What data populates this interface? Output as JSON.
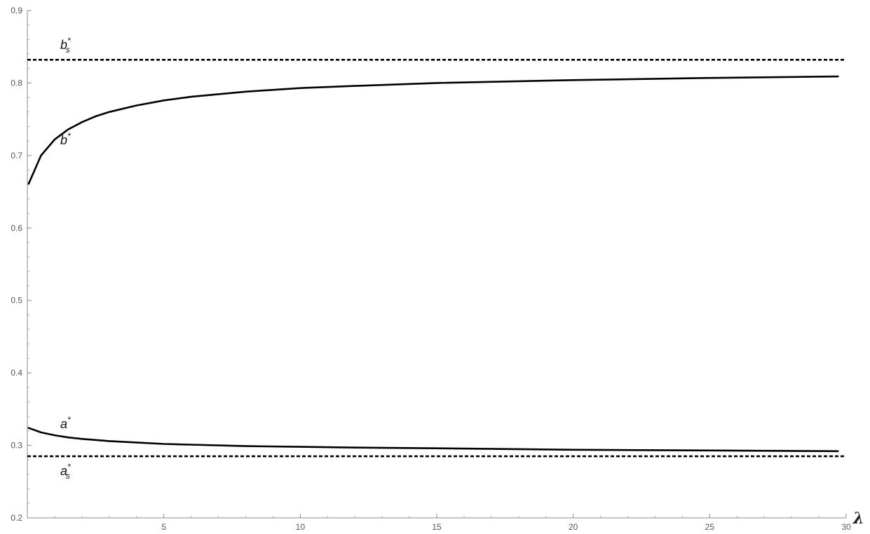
{
  "chart_data": {
    "type": "line",
    "xlabel": "λ",
    "ylabel": "",
    "xlim": [
      0,
      30
    ],
    "ylim": [
      0.2,
      0.9
    ],
    "x_ticks": [
      5,
      10,
      15,
      20,
      25,
      30
    ],
    "x_tick_labels": [
      "5",
      "10",
      "15",
      "20",
      "25",
      "30"
    ],
    "y_ticks": [
      0.2,
      0.3,
      0.4,
      0.5,
      0.6,
      0.7,
      0.8,
      0.9
    ],
    "y_tick_labels": [
      "0.2",
      "0.3",
      "0.4",
      "0.5",
      "0.6",
      "0.7",
      "0.8",
      "0.9"
    ],
    "grid": false,
    "line_color": "#000000",
    "series": [
      {
        "name": "b*",
        "style": "solid",
        "x": [
          0.05,
          0.5,
          1,
          1.5,
          2,
          2.5,
          3,
          4,
          5,
          6,
          8,
          10,
          12,
          15,
          20,
          25,
          29.7
        ],
        "values": [
          0.661,
          0.7,
          0.722,
          0.736,
          0.746,
          0.754,
          0.76,
          0.769,
          0.776,
          0.781,
          0.788,
          0.793,
          0.796,
          0.8,
          0.804,
          0.807,
          0.809
        ]
      },
      {
        "name": "a*",
        "style": "solid",
        "x": [
          0.05,
          0.5,
          1,
          1.5,
          2,
          3,
          4,
          5,
          6,
          8,
          10,
          12,
          15,
          20,
          25,
          29.7
        ],
        "values": [
          0.324,
          0.318,
          0.314,
          0.311,
          0.309,
          0.306,
          0.304,
          0.302,
          0.301,
          0.299,
          0.298,
          0.297,
          0.296,
          0.294,
          0.293,
          0.292
        ]
      },
      {
        "name": "b*s",
        "style": "dashed",
        "x": [
          0,
          30
        ],
        "values": [
          0.832,
          0.832
        ]
      },
      {
        "name": "a*s",
        "style": "dashed",
        "x": [
          0,
          30
        ],
        "values": [
          0.285,
          0.285
        ]
      }
    ]
  },
  "labels": {
    "b_star": {
      "base": "b",
      "sup": "*",
      "sub": ""
    },
    "a_star": {
      "base": "a",
      "sup": "*",
      "sub": ""
    },
    "b_s_star": {
      "base": "b",
      "sup": "*",
      "sub": "s"
    },
    "a_s_star": {
      "base": "a",
      "sup": "*",
      "sub": "s"
    }
  }
}
